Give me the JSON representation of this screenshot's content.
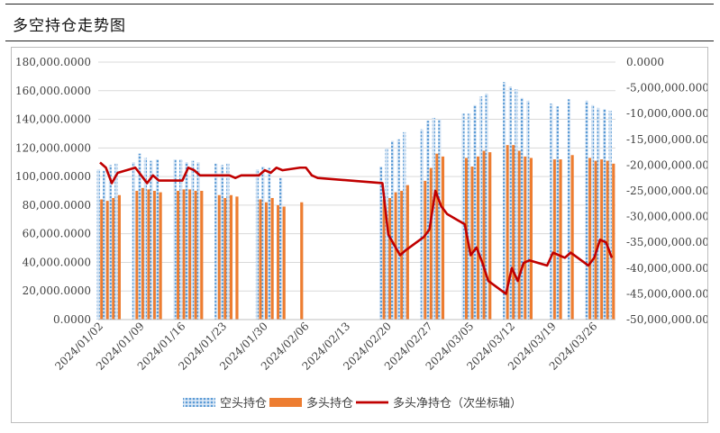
{
  "header": {
    "title": "多空持仓走势图"
  },
  "colors": {
    "short": "#5b9bd5",
    "long": "#ed7d31",
    "net": "#c00000",
    "grid": "#d9d9d9",
    "axis_text": "#404040"
  },
  "chart_data": {
    "type": "bar",
    "dates": [
      "2024/01/02",
      "2024/01/03",
      "2024/01/04",
      "2024/01/05",
      "2024/01/08",
      "2024/01/09",
      "2024/01/10",
      "2024/01/11",
      "2024/01/12",
      "2024/01/15",
      "2024/01/16",
      "2024/01/17",
      "2024/01/18",
      "2024/01/19",
      "2024/01/22",
      "2024/01/23",
      "2024/01/24",
      "2024/01/25",
      "2024/01/26",
      "2024/01/29",
      "2024/01/30",
      "2024/01/31",
      "2024/02/01",
      "2024/02/02",
      "2024/02/05",
      "2024/02/06",
      "2024/02/07",
      "2024/02/08",
      "2024/02/19",
      "2024/02/20",
      "2024/02/21",
      "2024/02/22",
      "2024/02/23",
      "2024/02/26",
      "2024/02/27",
      "2024/02/28",
      "2024/02/29",
      "2024/03/01",
      "2024/03/04",
      "2024/03/05",
      "2024/03/06",
      "2024/03/07",
      "2024/03/08",
      "2024/03/11",
      "2024/03/12",
      "2024/03/13",
      "2024/03/14",
      "2024/03/15",
      "2024/03/18",
      "2024/03/19",
      "2024/03/20",
      "2024/03/21",
      "2024/03/22",
      "2024/03/25",
      "2024/03/26",
      "2024/03/27",
      "2024/03/28",
      "2024/03/29"
    ],
    "x_tick_labels": [
      "2024/01/02",
      "2024/01/09",
      "2024/01/16",
      "2024/01/23",
      "2024/01/30",
      "2024/02/06",
      "2024/02/13",
      "2024/02/20",
      "2024/02/27",
      "2024/03/05",
      "2024/03/12",
      "2024/03/19",
      "2024/03/26"
    ],
    "series": [
      {
        "name": "空头持仓",
        "type": "bar",
        "axis": "left",
        "values": [
          105000,
          104000,
          108000,
          109000,
          110000,
          116000,
          113000,
          111000,
          112000,
          112000,
          112000,
          110000,
          111000,
          110000,
          109000,
          108000,
          109000,
          null,
          null,
          105000,
          107000,
          106000,
          null,
          99000,
          null,
          null,
          null,
          null,
          107000,
          120000,
          125000,
          126000,
          131000,
          133000,
          139000,
          141000,
          140000,
          null,
          144000,
          144000,
          150000,
          156000,
          158000,
          166000,
          163000,
          161000,
          155000,
          153000,
          null,
          151000,
          149000,
          null,
          154000,
          153000,
          150000,
          148000,
          147000,
          146000
        ]
      },
      {
        "name": "多头持仓",
        "type": "bar",
        "axis": "left",
        "values": [
          84000,
          83000,
          85000,
          87000,
          90000,
          92000,
          91000,
          90000,
          89000,
          90000,
          91000,
          91000,
          90000,
          90000,
          87000,
          85000,
          87000,
          86000,
          null,
          84000,
          82000,
          85000,
          80000,
          79000,
          82000,
          null,
          null,
          null,
          84000,
          85000,
          89000,
          90000,
          94000,
          97000,
          106000,
          116000,
          114000,
          null,
          113000,
          107000,
          114000,
          118000,
          117000,
          122000,
          122000,
          118000,
          114000,
          113000,
          null,
          112000,
          112000,
          null,
          115000,
          113000,
          111000,
          112000,
          111000,
          109000
        ]
      },
      {
        "name": "多头净持仓（次坐标轴）",
        "type": "line",
        "axis": "right",
        "values": [
          -19500000,
          -20500000,
          -23500000,
          -21500000,
          -20500000,
          -22000000,
          -23500000,
          -22000000,
          -23000000,
          -23000000,
          -23000000,
          -20500000,
          -21000000,
          -22000000,
          -22000000,
          -22000000,
          -22000000,
          -22500000,
          -22000000,
          -22000000,
          -21000000,
          -21500000,
          -20500000,
          -21000000,
          -20500000,
          -20500000,
          -22000000,
          -22500000,
          -23500000,
          -33500000,
          -35500000,
          -37500000,
          -36500000,
          -34000000,
          -32500000,
          -25000000,
          -28000000,
          -29500000,
          -31500000,
          -37500000,
          -36000000,
          -39000000,
          -42500000,
          -45000000,
          -40000000,
          -42500000,
          -39000000,
          -38500000,
          -39500000,
          -37000000,
          -37500000,
          -38000000,
          -37000000,
          -39500000,
          -38000000,
          -34500000,
          -35000000,
          -38000000
        ]
      }
    ],
    "y_left": {
      "min": 0,
      "max": 180000,
      "step": 20000,
      "tick_labels": [
        "0.0000",
        "20,000.0000",
        "40,000.0000",
        "60,000.0000",
        "80,000.0000",
        "100,000.0000",
        "120,000.0000",
        "140,000.0000",
        "160,000.0000",
        "180,000.0000"
      ]
    },
    "y_right": {
      "min": -50000000,
      "max": 0,
      "step": 5000000,
      "tick_labels": [
        "-50,000,000.0000",
        "-45,000,000.0000",
        "-40,000,000.0000",
        "-35,000,000.0000",
        "-30,000,000.0000",
        "-25,000,000.0000",
        "-20,000,000.0000",
        "-15,000,000.0000",
        "-10,000,000.0000",
        "-5,000,000.0000",
        "0.0000"
      ]
    },
    "grid": true,
    "legend_position": "bottom"
  }
}
